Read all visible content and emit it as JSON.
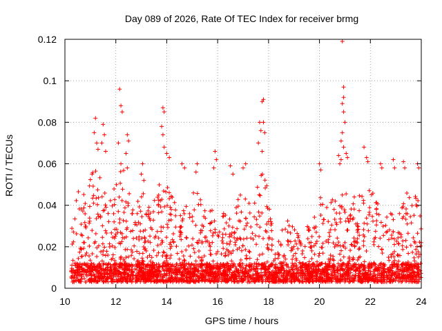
{
  "chart_data": {
    "type": "scatter",
    "title": "Day 089 of 2026, Rate Of TEC Index for receiver brmg",
    "xlabel": "GPS time / hours",
    "ylabel": "ROTI / TECUs",
    "xlim": [
      10,
      24
    ],
    "ylim": [
      0,
      0.12
    ],
    "grid": true,
    "marker": "+",
    "color": "#ff0000",
    "xticks": [
      10,
      12,
      14,
      16,
      18,
      20,
      22,
      24
    ],
    "xtick_labels": [
      "10",
      "12",
      "14",
      "16",
      "18",
      "20",
      "22",
      "24"
    ],
    "yticks": [
      0,
      0.02,
      0.04,
      0.06,
      0.08,
      0.1,
      0.12
    ],
    "ytick_labels": [
      "0",
      "0.02",
      "0.04",
      "0.06",
      "0.08",
      "0.1",
      "0.12"
    ],
    "x_start": 10.25,
    "x_end": 24.0,
    "baseline_range": [
      0.003,
      0.012
    ],
    "series": [
      {
        "name": "brmg",
        "envelope": {
          "x": [
            10.25,
            10.4,
            10.6,
            10.8,
            11.0,
            11.2,
            11.4,
            11.6,
            11.8,
            12.0,
            12.2,
            12.4,
            12.6,
            12.8,
            13.0,
            13.2,
            13.4,
            13.6,
            13.8,
            14.0,
            14.2,
            14.4,
            14.6,
            14.8,
            15.0,
            15.2,
            15.4,
            15.6,
            15.8,
            16.0,
            16.2,
            16.4,
            16.6,
            16.8,
            17.0,
            17.2,
            17.4,
            17.6,
            17.8,
            18.0,
            18.2,
            18.4,
            18.6,
            18.8,
            19.0,
            19.2,
            19.4,
            19.6,
            19.8,
            20.0,
            20.2,
            20.4,
            20.6,
            20.8,
            21.0,
            21.2,
            21.4,
            21.6,
            21.8,
            22.0,
            22.2,
            22.4,
            22.6,
            22.8,
            23.0,
            23.2,
            23.4,
            23.6,
            23.8,
            24.0
          ],
          "top": [
            0.03,
            0.045,
            0.05,
            0.05,
            0.06,
            0.065,
            0.06,
            0.055,
            0.05,
            0.055,
            0.06,
            0.055,
            0.045,
            0.04,
            0.05,
            0.045,
            0.04,
            0.045,
            0.055,
            0.05,
            0.045,
            0.04,
            0.04,
            0.04,
            0.045,
            0.05,
            0.04,
            0.04,
            0.04,
            0.035,
            0.04,
            0.035,
            0.04,
            0.045,
            0.045,
            0.045,
            0.045,
            0.05,
            0.06,
            0.045,
            0.03,
            0.025,
            0.03,
            0.035,
            0.03,
            0.025,
            0.035,
            0.03,
            0.04,
            0.045,
            0.04,
            0.04,
            0.045,
            0.05,
            0.05,
            0.045,
            0.045,
            0.045,
            0.045,
            0.05,
            0.045,
            0.04,
            0.045,
            0.04,
            0.045,
            0.05,
            0.05,
            0.045,
            0.045,
            0.04
          ]
        },
        "spikes": [
          [
            11.2,
            0.082
          ],
          [
            11.15,
            0.075
          ],
          [
            11.25,
            0.07
          ],
          [
            11.3,
            0.067
          ],
          [
            11.5,
            0.079
          ],
          [
            11.55,
            0.074
          ],
          [
            11.45,
            0.07
          ],
          [
            11.6,
            0.066
          ],
          [
            12.15,
            0.096
          ],
          [
            12.2,
            0.088
          ],
          [
            12.25,
            0.085
          ],
          [
            12.1,
            0.07
          ],
          [
            12.2,
            0.06
          ],
          [
            12.45,
            0.074
          ],
          [
            12.5,
            0.071
          ],
          [
            12.4,
            0.065
          ],
          [
            12.45,
            0.058
          ],
          [
            13.05,
            0.06
          ],
          [
            13.0,
            0.055
          ],
          [
            13.1,
            0.052
          ],
          [
            13.85,
            0.087
          ],
          [
            13.9,
            0.085
          ],
          [
            13.8,
            0.078
          ],
          [
            13.85,
            0.074
          ],
          [
            13.9,
            0.068
          ],
          [
            14.0,
            0.065
          ],
          [
            14.1,
            0.063
          ],
          [
            14.6,
            0.06
          ],
          [
            14.7,
            0.058
          ],
          [
            15.2,
            0.06
          ],
          [
            15.15,
            0.056
          ],
          [
            15.9,
            0.066
          ],
          [
            15.95,
            0.062
          ],
          [
            15.85,
            0.058
          ],
          [
            16.5,
            0.059
          ],
          [
            16.6,
            0.055
          ],
          [
            17.1,
            0.06
          ],
          [
            17.0,
            0.058
          ],
          [
            17.65,
            0.08
          ],
          [
            17.7,
            0.076
          ],
          [
            17.6,
            0.07
          ],
          [
            17.75,
            0.066
          ],
          [
            17.75,
            0.09
          ],
          [
            17.8,
            0.091
          ],
          [
            17.8,
            0.08
          ],
          [
            17.85,
            0.075
          ],
          [
            20.0,
            0.06
          ],
          [
            20.05,
            0.057
          ],
          [
            20.75,
            0.064
          ],
          [
            20.8,
            0.06
          ],
          [
            20.85,
            0.062
          ],
          [
            20.9,
            0.119
          ],
          [
            20.95,
            0.097
          ],
          [
            20.95,
            0.092
          ],
          [
            20.9,
            0.089
          ],
          [
            20.95,
            0.085
          ],
          [
            21.0,
            0.08
          ],
          [
            20.9,
            0.075
          ],
          [
            20.85,
            0.071
          ],
          [
            20.95,
            0.068
          ],
          [
            21.05,
            0.065
          ],
          [
            21.1,
            0.063
          ],
          [
            21.75,
            0.068
          ],
          [
            21.85,
            0.063
          ],
          [
            21.9,
            0.061
          ],
          [
            22.4,
            0.06
          ],
          [
            22.45,
            0.058
          ],
          [
            22.9,
            0.062
          ],
          [
            22.95,
            0.058
          ],
          [
            23.3,
            0.061
          ],
          [
            23.35,
            0.058
          ],
          [
            23.85,
            0.06
          ],
          [
            23.9,
            0.058
          ]
        ]
      }
    ]
  }
}
